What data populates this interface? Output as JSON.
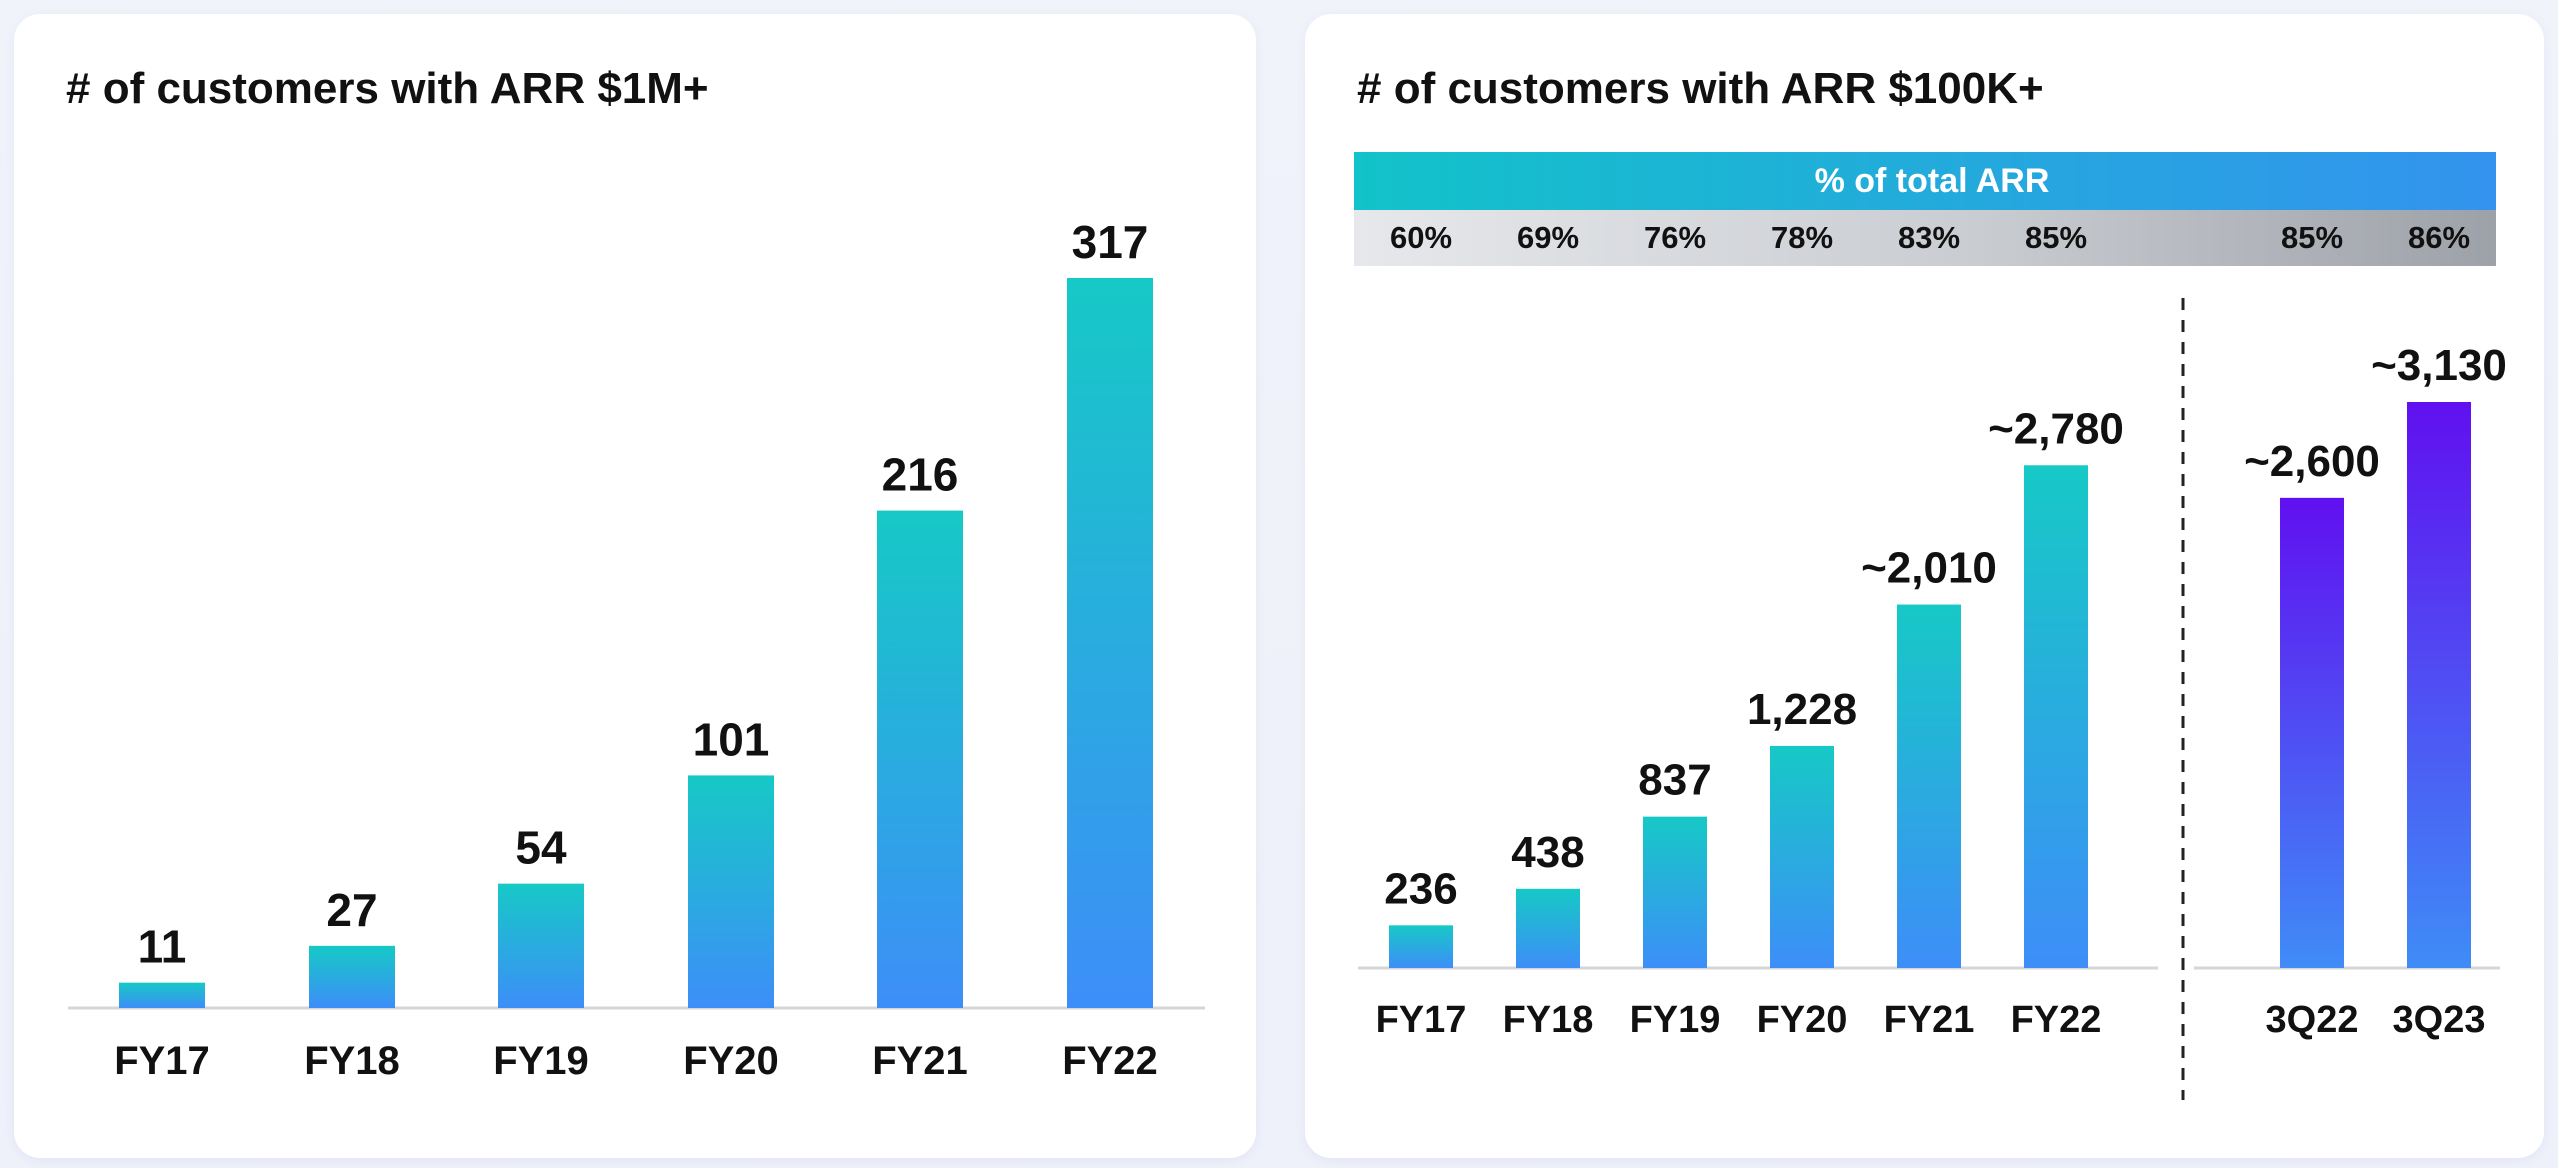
{
  "colors": {
    "bar_top": "#16c9c6",
    "bar_bottom": "#3d8ef8",
    "bar_q_top": "#6010f0",
    "bar_q_bottom": "#3f8cf7",
    "banner_left": "#12c3c9",
    "banner_right": "#3393ee"
  },
  "chart_data": [
    {
      "type": "bar",
      "title": "# of customers with ARR $1M+",
      "categories": [
        "FY17",
        "FY18",
        "FY19",
        "FY20",
        "FY21",
        "FY22"
      ],
      "values": [
        11,
        27,
        54,
        101,
        216,
        317
      ],
      "value_labels": [
        "11",
        "27",
        "54",
        "101",
        "216",
        "317"
      ],
      "ylim": [
        0,
        317
      ]
    },
    {
      "type": "bar",
      "title": "# of customers with ARR $100K+",
      "banner": "% of total ARR",
      "categories": [
        "FY17",
        "FY18",
        "FY19",
        "FY20",
        "FY21",
        "FY22",
        "3Q22",
        "3Q23"
      ],
      "values": [
        236,
        438,
        837,
        1228,
        2010,
        2780,
        2600,
        3130
      ],
      "value_labels": [
        "236",
        "438",
        "837",
        "1,228",
        "~2,010",
        "~2,780",
        "~2,600",
        "~3,130"
      ],
      "pct_of_total_arr": [
        "60%",
        "69%",
        "76%",
        "78%",
        "83%",
        "85%",
        "85%",
        "86%"
      ],
      "ylim": [
        0,
        3130
      ]
    }
  ]
}
